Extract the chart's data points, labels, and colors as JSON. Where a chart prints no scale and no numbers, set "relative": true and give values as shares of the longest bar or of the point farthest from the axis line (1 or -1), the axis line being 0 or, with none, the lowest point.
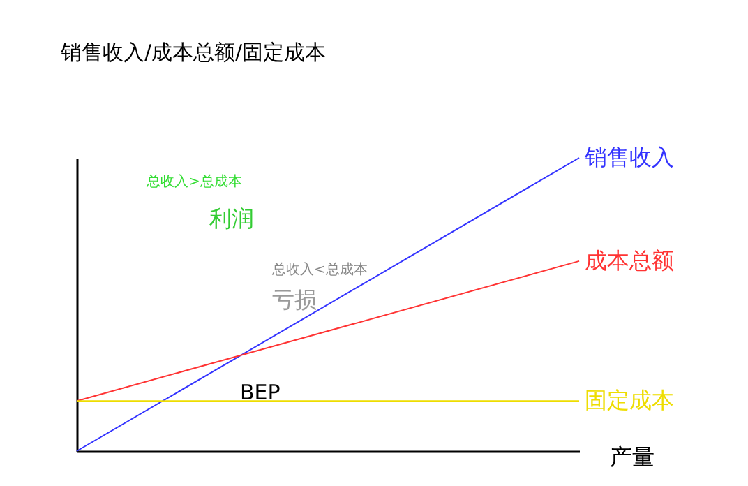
{
  "chart_data": {
    "type": "line",
    "relative": true,
    "xlabel": "产量",
    "ylabel": "销售收入/成本总额/固定成本",
    "categories": [
      null,
      null
    ],
    "marker": "none",
    "line_style": "solid",
    "legend": false,
    "series": [
      {
        "name": "销售收入",
        "color": "#3333ff",
        "values": [
          0,
          1
        ]
      },
      {
        "name": "成本总额",
        "color": "#ff3333",
        "values": [
          0.171,
          0.648
        ]
      },
      {
        "name": "固定成本",
        "color": "#eedd00",
        "values": [
          0.171,
          0.171
        ]
      }
    ],
    "annotations": [
      "总收入>总成本",
      "利润",
      "总收入<总成本",
      "亏损",
      "BEP"
    ]
  }
}
